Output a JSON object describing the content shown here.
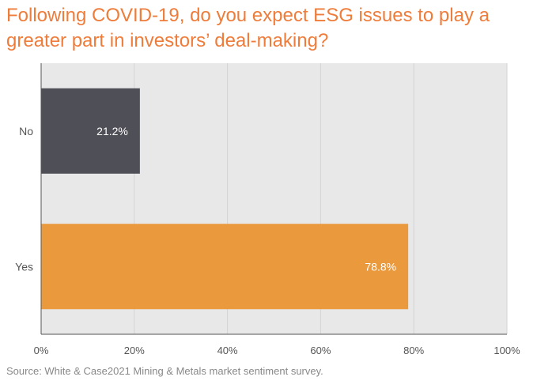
{
  "title": "Following COVID-19, do you expect ESG issues to play a greater part in investors’ deal-making?",
  "source": "Source: White & Case2021 Mining & Metals market sentiment survey.",
  "colors": {
    "title": "#ee7c3a",
    "plot_background": "#e8e8e8",
    "grid": "#d3d3d3",
    "axis": "#555555",
    "tick_text": "#555555",
    "source_text": "#888888"
  },
  "chart_data": {
    "type": "bar",
    "orientation": "horizontal",
    "categories": [
      "No",
      "Yes"
    ],
    "values": [
      21.2,
      78.8
    ],
    "value_labels": [
      "21.2%",
      "78.8%"
    ],
    "bar_colors": [
      "#4f4f57",
      "#ea9a3d"
    ],
    "xlim": [
      0,
      100
    ],
    "xticks": [
      0,
      20,
      40,
      60,
      80,
      100
    ],
    "xtick_labels": [
      "0%",
      "20%",
      "40%",
      "60%",
      "80%",
      "100%"
    ],
    "grid": true,
    "legend": "none"
  }
}
